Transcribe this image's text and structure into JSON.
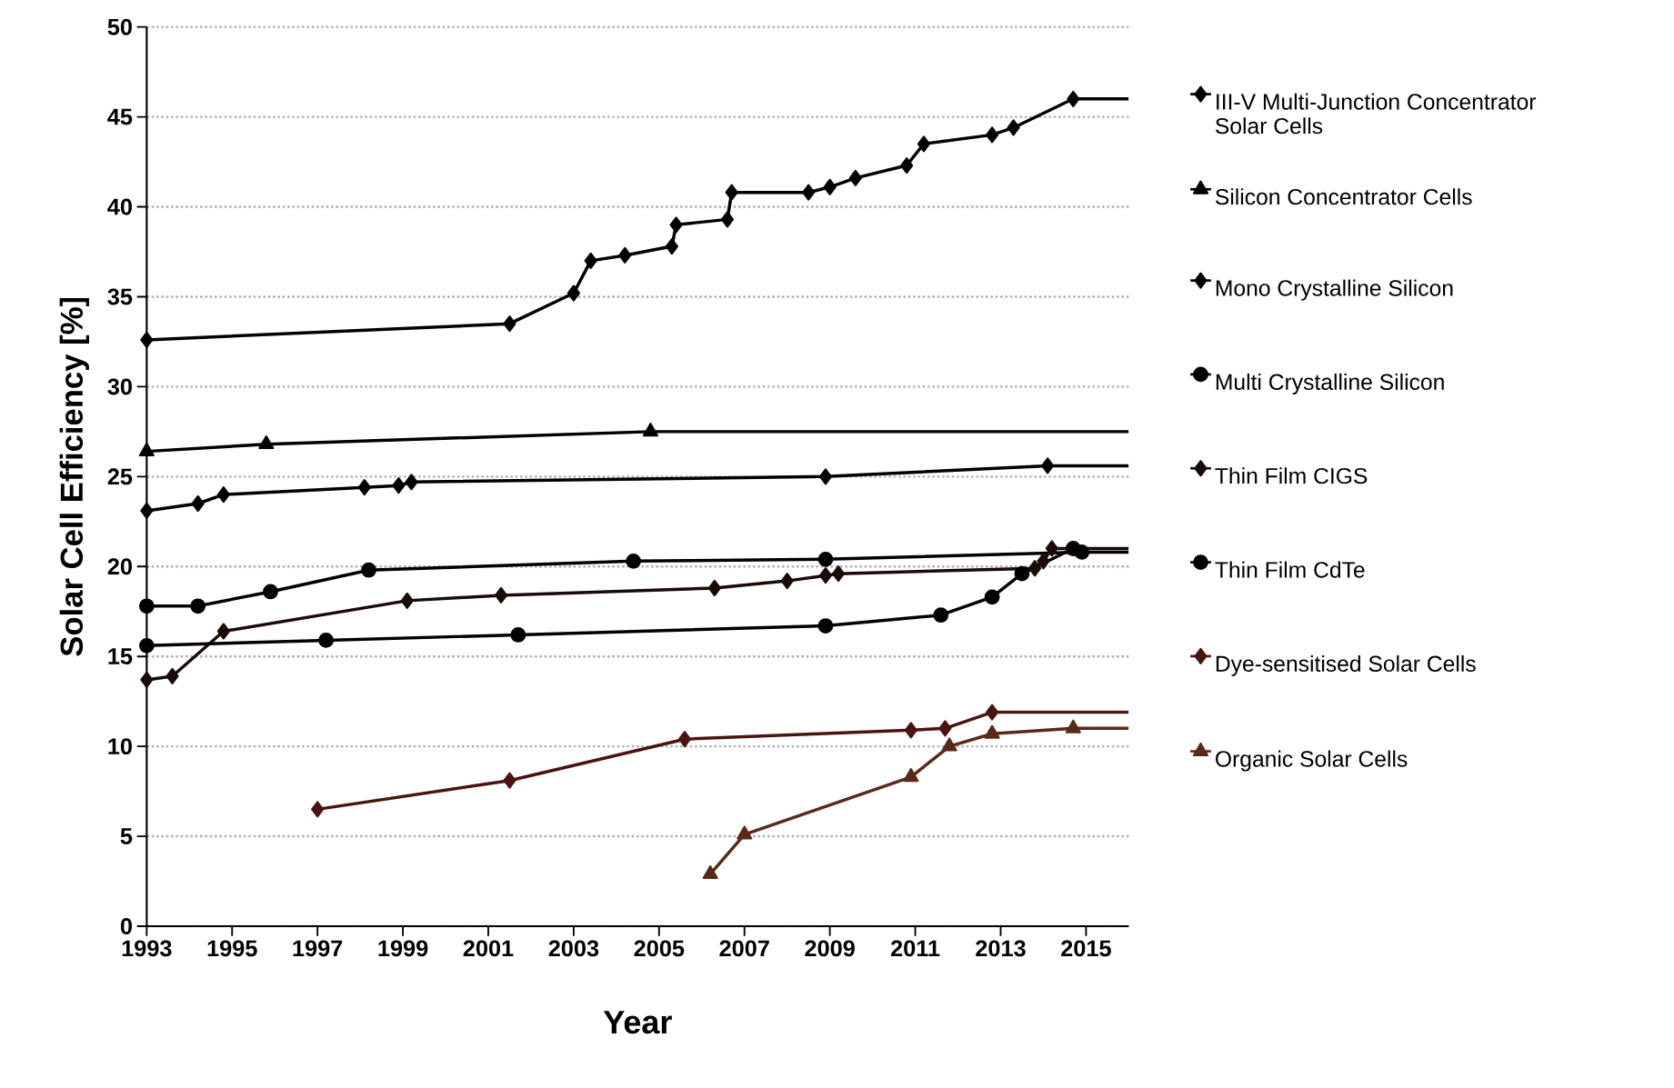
{
  "chart_data": {
    "type": "line",
    "xlabel": "Year",
    "ylabel": "Solar Cell Efficiency [%]",
    "xlim": [
      1993,
      2016
    ],
    "ylim": [
      0,
      50
    ],
    "xticks": [
      1993,
      1995,
      1997,
      1999,
      2001,
      2003,
      2005,
      2007,
      2009,
      2011,
      2013,
      2015
    ],
    "yticks": [
      0,
      5,
      10,
      15,
      20,
      25,
      30,
      35,
      40,
      45,
      50
    ],
    "grid": "y",
    "legend": "right",
    "line_style": "solid",
    "series": [
      {
        "name": "III-V Multi-Junction Concentrator Solar Cells",
        "color": "#000000",
        "marker": "diamond",
        "x": [
          1993,
          2001.5,
          2003.0,
          2003.4,
          2004.2,
          2005.3,
          2005.4,
          2006.6,
          2006.7,
          2008.5,
          2009.0,
          2009.6,
          2010.8,
          2011.2,
          2012.8,
          2013.3,
          2014.7,
          2016
        ],
        "values": [
          32.6,
          33.5,
          35.2,
          37.0,
          37.3,
          37.8,
          39.0,
          39.3,
          40.8,
          40.8,
          41.1,
          41.6,
          42.3,
          43.5,
          44.0,
          44.4,
          46.0,
          46.0
        ]
      },
      {
        "name": "Silicon Concentrator Cells",
        "color": "#000000",
        "marker": "triangle",
        "x": [
          1993,
          1995.8,
          2004.8,
          2016
        ],
        "values": [
          26.4,
          26.8,
          27.5,
          27.5
        ]
      },
      {
        "name": "Mono Crystalline Silicon",
        "color": "#000000",
        "marker": "diamond",
        "x": [
          1993,
          1994.2,
          1994.8,
          1998.1,
          1998.9,
          1999.2,
          2008.9,
          2014.1,
          2016
        ],
        "values": [
          23.1,
          23.5,
          24.0,
          24.4,
          24.5,
          24.7,
          25.0,
          25.6,
          25.6
        ]
      },
      {
        "name": "Multi Crystalline Silicon",
        "color": "#000000",
        "marker": "circle",
        "x": [
          1993,
          1994.2,
          1995.9,
          1998.2,
          2004.4,
          2008.9,
          2014.9,
          2016
        ],
        "values": [
          17.8,
          17.8,
          18.6,
          19.8,
          20.3,
          20.4,
          20.8,
          20.8
        ]
      },
      {
        "name": "Thin Film CIGS",
        "color": "#1a0a08",
        "marker": "diamond",
        "x": [
          1993,
          1993.6,
          1994.8,
          1999.1,
          2001.3,
          2006.3,
          2008.0,
          2008.9,
          2009.2,
          2013.8,
          2014.0,
          2014.2,
          2016
        ],
        "values": [
          13.7,
          13.9,
          16.4,
          18.1,
          18.4,
          18.8,
          19.2,
          19.5,
          19.6,
          19.9,
          20.3,
          21.0,
          21.0
        ]
      },
      {
        "name": "Thin Film CdTe",
        "color": "#000000",
        "marker": "circle",
        "x": [
          1993,
          1997.2,
          2001.7,
          2008.9,
          2011.6,
          2012.8,
          2013.5,
          2014.7
        ],
        "values": [
          15.6,
          15.9,
          16.2,
          16.7,
          17.3,
          18.3,
          19.6,
          21.0
        ]
      },
      {
        "name": "Dye-sensitised Solar Cells",
        "color": "#4a1410",
        "marker": "diamond",
        "x": [
          1997.0,
          2001.5,
          2005.6,
          2010.9,
          2011.7,
          2012.8,
          2016
        ],
        "values": [
          6.5,
          8.1,
          10.4,
          10.9,
          11.0,
          11.9,
          11.9
        ]
      },
      {
        "name": "Organic Solar Cells",
        "color": "#5a2a18",
        "marker": "triangle",
        "x": [
          2006.2,
          2007.0,
          2010.9,
          2011.8,
          2012.8,
          2014.7,
          2016
        ],
        "values": [
          2.9,
          5.1,
          8.3,
          10.0,
          10.7,
          11.0,
          11.0
        ]
      }
    ]
  }
}
